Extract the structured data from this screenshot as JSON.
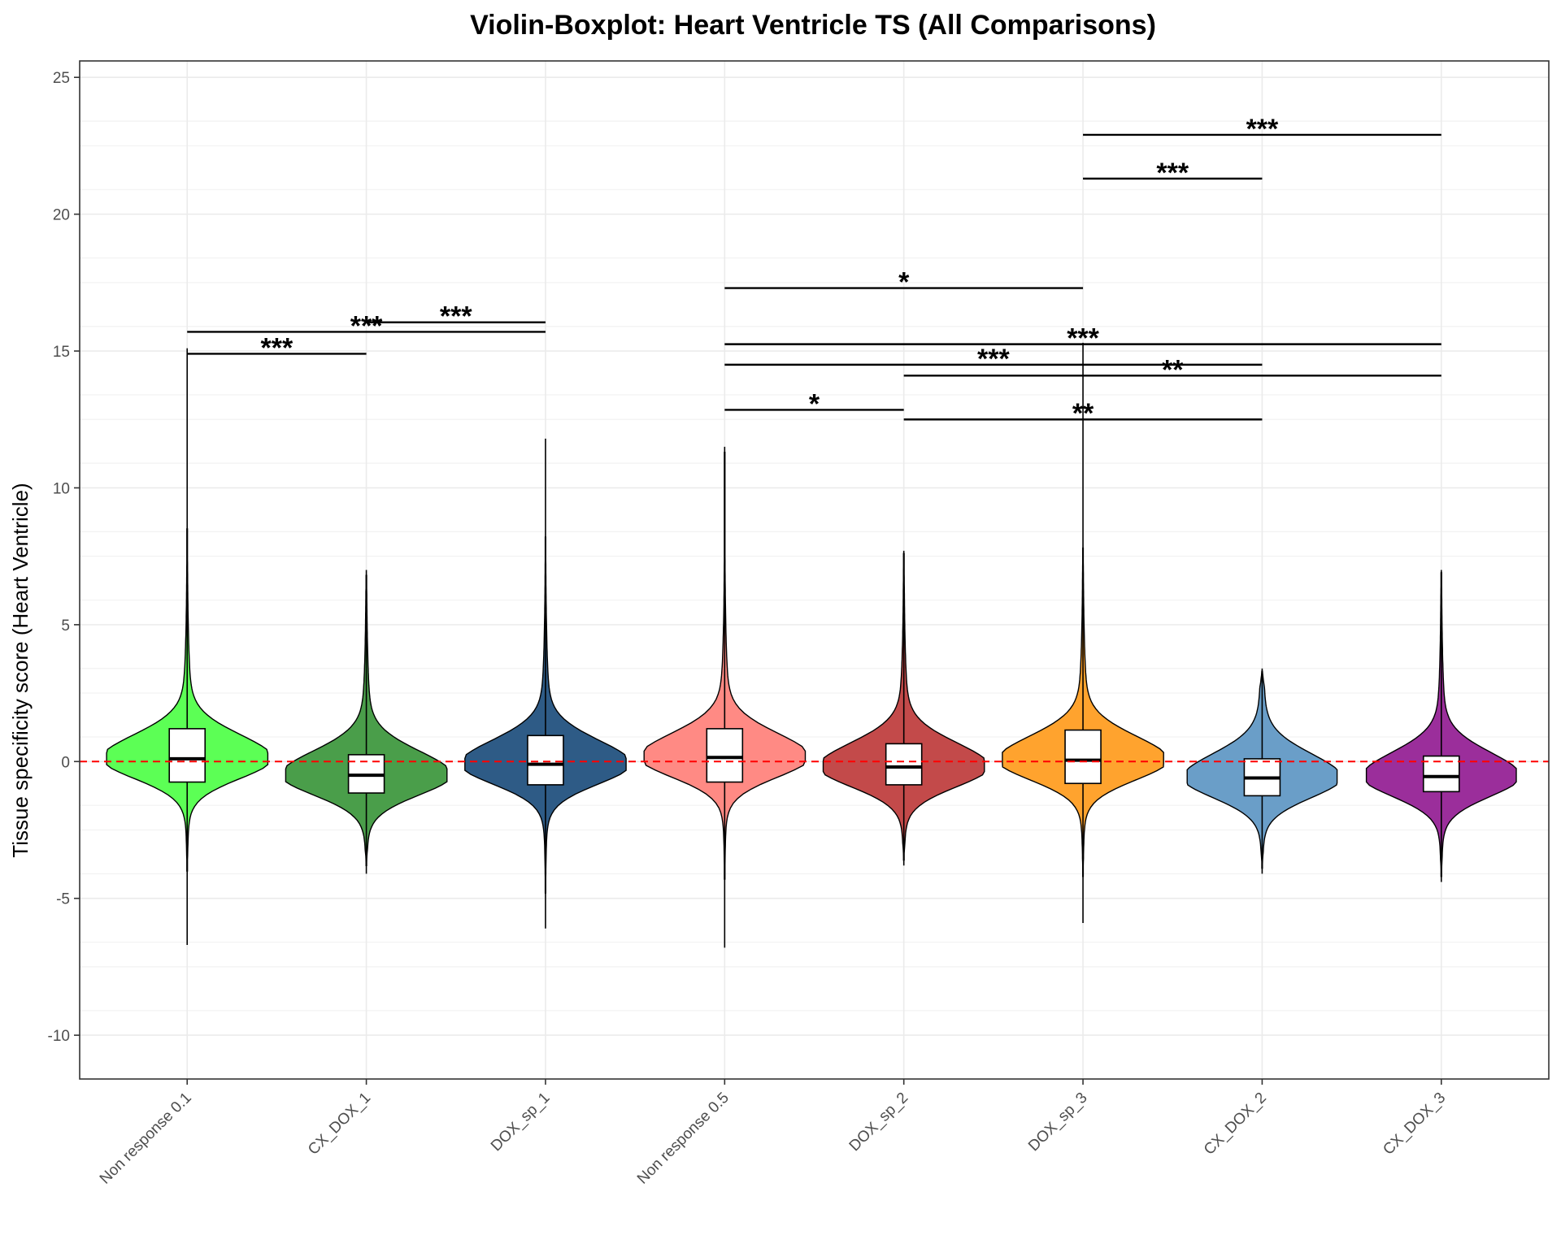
{
  "chart_data": {
    "type": "violin-boxplot",
    "title": "Violin-Boxplot: Heart Ventricle TS (All Comparisons)",
    "xlabel": "",
    "ylabel": "Tissue specificity score (Heart Ventricle)",
    "ylim": [
      -11.6,
      25.6
    ],
    "yticks": [
      -10,
      -5,
      0,
      5,
      10,
      15,
      20,
      25
    ],
    "grid": true,
    "reference_line": {
      "y": 0,
      "color": "#ff0000",
      "style": "dashed"
    },
    "categories": [
      "Non response 0.1",
      "CX_DOX_1",
      "DOX_sp_1",
      "Non response 0.5",
      "DOX_sp_2",
      "DOX_sp_3",
      "CX_DOX_2",
      "CX_DOX_3"
    ],
    "colors": [
      "#5cff55",
      "#4a9e4a",
      "#2e5b86",
      "#ff8a84",
      "#c34a4a",
      "#ffa32e",
      "#6a9ec8",
      "#9b2e9b"
    ],
    "series": [
      {
        "box": {
          "q1": -0.75,
          "median": 0.1,
          "q3": 1.2
        },
        "whisker": [
          -6.7,
          15.1
        ],
        "violin_range": [
          -4.0,
          8.5
        ],
        "mode_width": 1.0
      },
      {
        "box": {
          "q1": -1.15,
          "median": -0.5,
          "q3": 0.25
        },
        "whisker": [
          -4.1,
          7.0
        ],
        "violin_range": [
          -3.8,
          6.8
        ],
        "mode_width": 1.0
      },
      {
        "box": {
          "q1": -0.85,
          "median": -0.1,
          "q3": 0.95
        },
        "whisker": [
          -6.1,
          11.8
        ],
        "violin_range": [
          -4.8,
          8.2
        ],
        "mode_width": 1.0
      },
      {
        "box": {
          "q1": -0.75,
          "median": 0.15,
          "q3": 1.2
        },
        "whisker": [
          -6.8,
          11.5
        ],
        "violin_range": [
          -4.3,
          11.3
        ],
        "mode_width": 1.0
      },
      {
        "box": {
          "q1": -0.85,
          "median": -0.2,
          "q3": 0.65
        },
        "whisker": [
          -3.8,
          7.7
        ],
        "violin_range": [
          -3.6,
          7.6
        ],
        "mode_width": 1.0
      },
      {
        "box": {
          "q1": -0.8,
          "median": 0.05,
          "q3": 1.15
        },
        "whisker": [
          -5.9,
          15.3
        ],
        "violin_range": [
          -4.2,
          7.8
        ],
        "mode_width": 1.0
      },
      {
        "box": {
          "q1": -1.25,
          "median": -0.6,
          "q3": 0.1
        },
        "whisker": [
          -4.1,
          3.4
        ],
        "violin_range": [
          -3.9,
          3.3
        ],
        "mode_width": 0.93
      },
      {
        "box": {
          "q1": -1.1,
          "median": -0.55,
          "q3": 0.2
        },
        "whisker": [
          -4.4,
          7.0
        ],
        "violin_range": [
          -4.2,
          6.9
        ],
        "mode_width": 0.93
      }
    ],
    "comparisons": [
      {
        "from": "Non response 0.1",
        "to": "CX_DOX_1",
        "y": 14.9,
        "label": "***"
      },
      {
        "from": "Non response 0.1",
        "to": "DOX_sp_1",
        "y": 15.7,
        "label": "***"
      },
      {
        "from": "CX_DOX_1",
        "to": "DOX_sp_1",
        "y": 16.05,
        "label": "***"
      },
      {
        "from": "Non response 0.5",
        "to": "DOX_sp_2",
        "y": 12.85,
        "label": "*"
      },
      {
        "from": "DOX_sp_2",
        "to": "CX_DOX_2",
        "y": 12.5,
        "label": "**"
      },
      {
        "from": "DOX_sp_2",
        "to": "CX_DOX_3",
        "y": 14.1,
        "label": "**"
      },
      {
        "from": "Non response 0.5",
        "to": "CX_DOX_2",
        "y": 14.5,
        "label": "***"
      },
      {
        "from": "Non response 0.5",
        "to": "CX_DOX_3",
        "y": 15.25,
        "label": "***"
      },
      {
        "from": "Non response 0.5",
        "to": "DOX_sp_3",
        "y": 17.3,
        "label": "*"
      },
      {
        "from": "DOX_sp_3",
        "to": "CX_DOX_2",
        "y": 21.3,
        "label": "***"
      },
      {
        "from": "DOX_sp_3",
        "to": "CX_DOX_3",
        "y": 22.9,
        "label": "***"
      }
    ]
  }
}
